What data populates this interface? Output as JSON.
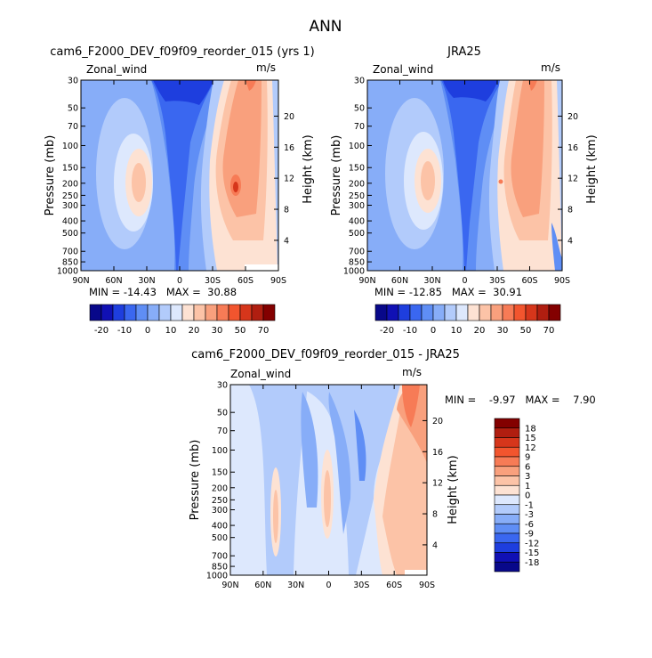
{
  "figure_title": "ANN",
  "colors": {
    "cb_top": [
      "#08088a",
      "#1010b4",
      "#1e3ede",
      "#3a67f0",
      "#5f8ef5",
      "#87adf8",
      "#b2cbfb",
      "#dde8fd",
      "#fde2d3",
      "#fcc3a7",
      "#f9a07d",
      "#f77b56",
      "#f2552e",
      "#d6361b",
      "#b01e10",
      "#830000"
    ],
    "cb_diff": [
      "#830000",
      "#b01e10",
      "#d6361b",
      "#f2552e",
      "#f77b56",
      "#f9a07d",
      "#fcc3a7",
      "#fde2d3",
      "#dde8fd",
      "#b2cbfb",
      "#87adf8",
      "#5f8ef5",
      "#3a67f0",
      "#1e3ede",
      "#1010b4",
      "#08088a"
    ]
  },
  "chart_data": [
    {
      "type": "heatmap",
      "title": "cam6_F2000_DEV_f09f09_reorder_015 (yrs 1)",
      "left_label": "Zonal_wind",
      "right_label": "m/s",
      "ylabel": "Pressure (mb)",
      "y2label": "Height (km)",
      "x_ticks": [
        "90N",
        "60N",
        "30N",
        "0",
        "30S",
        "60S",
        "90S"
      ],
      "y_ticks": [
        "30",
        "50",
        "70",
        "100",
        "150",
        "200",
        "250",
        "300",
        "400",
        "500",
        "700",
        "850",
        "1000"
      ],
      "y2_ticks": [
        "4",
        "8",
        "12",
        "16",
        "20"
      ],
      "stats": "MIN = -14.43   MAX =  30.88",
      "min": -14.43,
      "max": 30.88,
      "colorbar_labels": [
        "-20",
        "-10",
        "0",
        "10",
        "20",
        "30",
        "50",
        "70"
      ]
    },
    {
      "type": "heatmap",
      "title": "JRA25",
      "left_label": "Zonal_wind",
      "right_label": "m/s",
      "ylabel": "Pressure (mb)",
      "y2label": "Height (km)",
      "x_ticks": [
        "90N",
        "60N",
        "30N",
        "0",
        "30S",
        "60S",
        "90S"
      ],
      "y_ticks": [
        "30",
        "50",
        "70",
        "100",
        "150",
        "200",
        "250",
        "300",
        "400",
        "500",
        "700",
        "850",
        "1000"
      ],
      "y2_ticks": [
        "4",
        "8",
        "12",
        "16",
        "20"
      ],
      "stats": "MIN = -12.85   MAX =  30.91",
      "min": -12.85,
      "max": 30.91,
      "colorbar_labels": [
        "-20",
        "-10",
        "0",
        "10",
        "20",
        "30",
        "50",
        "70"
      ]
    },
    {
      "type": "heatmap",
      "title": "cam6_F2000_DEV_f09f09_reorder_015 - JRA25",
      "left_label": "Zonal_wind",
      "right_label": "m/s",
      "ylabel": "Pressure (mb)",
      "y2label": "Height (km)",
      "x_ticks": [
        "90N",
        "60N",
        "30N",
        "0",
        "30S",
        "60S",
        "90S"
      ],
      "y_ticks": [
        "30",
        "50",
        "70",
        "100",
        "150",
        "200",
        "250",
        "300",
        "400",
        "500",
        "700",
        "850",
        "1000"
      ],
      "y2_ticks": [
        "4",
        "8",
        "12",
        "16",
        "20"
      ],
      "stats": "MIN =    -9.97   MAX =    7.90",
      "min": -9.97,
      "max": 7.9,
      "colorbar_labels": [
        "18",
        "15",
        "12",
        "9",
        "6",
        "3",
        "1",
        "0",
        "-1",
        "-3",
        "-6",
        "-9",
        "-12",
        "-15",
        "-18"
      ]
    }
  ]
}
